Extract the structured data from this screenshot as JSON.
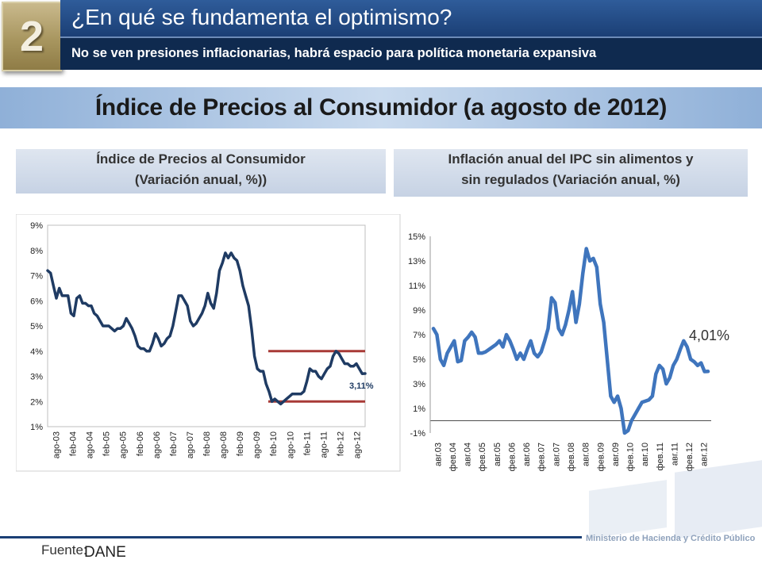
{
  "slide": {
    "number": "2",
    "title": "¿En qué se fundamenta el optimismo?",
    "subtitle": "No se ven presiones inflacionarias, habrá espacio para política monetaria expansiva",
    "main_title": "Índice de Precios al Consumidor (a agosto de 2012)"
  },
  "footer": {
    "source_label": "Fuente:",
    "source_value": "DANE",
    "ministry": "Ministerio de Hacienda y Crédito Público"
  },
  "colors": {
    "left_series": "#1f3b63",
    "right_series": "#3f75bd",
    "band_lines": "#a83a37",
    "title_blue": "#1b3f75",
    "accent_gold": "#a8965f"
  },
  "chart_data": [
    {
      "type": "line",
      "title": "Índice de Precios al Consumidor",
      "subtitle": "(Variación anual, %))",
      "xlabel": "",
      "ylabel": "",
      "ylim": [
        1,
        9
      ],
      "y_ticks": [
        "1%",
        "2%",
        "3%",
        "4%",
        "5%",
        "6%",
        "7%",
        "8%",
        "9%"
      ],
      "x_ticks": [
        "ago-03",
        "feb-04",
        "ago-04",
        "feb-05",
        "ago-05",
        "feb-06",
        "ago-06",
        "feb-07",
        "ago-07",
        "feb-08",
        "ago-08",
        "feb-09",
        "ago-09",
        "feb-10",
        "ago-10",
        "feb-11",
        "ago-11",
        "feb-12",
        "ago-12"
      ],
      "grid": false,
      "series": [
        {
          "values": [
            7.2,
            7.1,
            6.6,
            6.1,
            6.5,
            6.2,
            6.2,
            6.2,
            5.5,
            5.4,
            6.1,
            6.2,
            5.9,
            5.9,
            5.8,
            5.8,
            5.5,
            5.4,
            5.2,
            5.0,
            5.0,
            5.0,
            4.9,
            4.8,
            4.9,
            4.9,
            5.0,
            5.3,
            5.1,
            4.9,
            4.6,
            4.2,
            4.1,
            4.1,
            4.0,
            4.0,
            4.3,
            4.7,
            4.5,
            4.2,
            4.3,
            4.5,
            4.6,
            5.0,
            5.6,
            6.2,
            6.2,
            6.0,
            5.8,
            5.2,
            5.0,
            5.1,
            5.3,
            5.5,
            5.8,
            6.3,
            5.9,
            5.7,
            6.3,
            7.2,
            7.5,
            7.9,
            7.7,
            7.9,
            7.7,
            7.6,
            7.2,
            6.6,
            6.2,
            5.8,
            4.9,
            3.8,
            3.3,
            3.2,
            3.2,
            2.7,
            2.4,
            2.0,
            2.1,
            2.0,
            1.9,
            2.0,
            2.1,
            2.2,
            2.3,
            2.3,
            2.3,
            2.3,
            2.4,
            2.8,
            3.3,
            3.2,
            3.2,
            3.0,
            2.9,
            3.1,
            3.3,
            3.4,
            3.8,
            4.0,
            3.9,
            3.7,
            3.5,
            3.5,
            3.4,
            3.4,
            3.5,
            3.3,
            3.1,
            3.11
          ]
        }
      ],
      "band": {
        "upper": 4,
        "lower": 2
      },
      "annotation": "3,11%"
    },
    {
      "type": "line",
      "title": "Inflación anual del IPC sin alimentos y sin regulados (Variación anual, %)",
      "xlabel": "",
      "ylabel": "",
      "ylim": [
        -1,
        15
      ],
      "y_ticks": [
        "-1%",
        "1%",
        "3%",
        "5%",
        "7%",
        "9%",
        "11%",
        "13%",
        "15%"
      ],
      "x_ticks": [
        "авг.03",
        "фев.04",
        "авг.04",
        "фев.05",
        "авг.05",
        "фев.06",
        "авг.06",
        "фев.07",
        "авг.07",
        "фев.08",
        "авг.08",
        "фев.09",
        "авг.09",
        "фев.10",
        "авг.10",
        "фев.11",
        "авг.11",
        "фев.12",
        "авг.12"
      ],
      "grid": false,
      "series": [
        {
          "values": [
            7.5,
            7.0,
            5.0,
            4.5,
            5.5,
            6.0,
            6.5,
            4.8,
            4.9,
            6.5,
            6.8,
            7.2,
            6.8,
            5.5,
            5.5,
            5.6,
            5.8,
            6.0,
            6.2,
            6.5,
            6.0,
            7.0,
            6.5,
            5.8,
            5.0,
            5.5,
            5.0,
            5.8,
            6.5,
            5.5,
            5.2,
            5.6,
            6.5,
            7.5,
            10.0,
            9.6,
            7.5,
            7.0,
            7.8,
            9.0,
            10.5,
            8.0,
            9.5,
            12.0,
            14.0,
            13.0,
            13.2,
            12.5,
            9.5,
            8.0,
            5.0,
            2.0,
            1.5,
            2.0,
            1.0,
            -1.0,
            -0.8,
            0.0,
            0.5,
            1.0,
            1.5,
            1.6,
            1.7,
            2.0,
            3.8,
            4.5,
            4.2,
            3.0,
            3.5,
            4.5,
            5.0,
            5.8,
            6.5,
            6.0,
            5.0,
            4.8,
            4.5,
            4.7,
            4.0,
            4.01
          ]
        }
      ],
      "annotation": "4,01%"
    }
  ]
}
